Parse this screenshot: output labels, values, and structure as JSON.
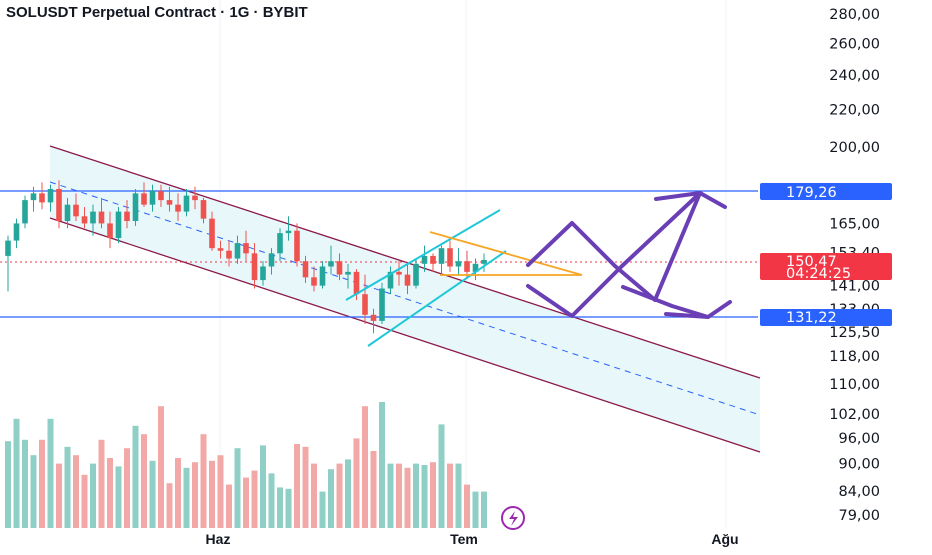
{
  "title": "SOLUSDT Perpetual Contract · 1G · BYBIT",
  "colors": {
    "up": "#26a69a",
    "down": "#ef5350",
    "volume_up": "#8fcfc6",
    "volume_down": "#f2a8a6",
    "channel": "#8b1a4a",
    "channel_fill": "#e8f7fa",
    "wedge": "#1ec8d8",
    "triangle": "#f5a623",
    "projection": "#6a3fb5",
    "level_line": "#2962ff",
    "price_tag": "#f23645",
    "level_tag": "#2962ff",
    "grid": "#f0f3fa"
  },
  "chart_data": {
    "type": "candlestick",
    "title": "SOLUSDT Perpetual Contract · 1G · BYBIT",
    "y_axis": {
      "scale": "log",
      "ticks": [
        "280,00",
        "260,00",
        "240,00",
        "220,00",
        "200,00",
        "165,00",
        "153,40",
        "141,00",
        "133,00",
        "125,50",
        "118,00",
        "110,00",
        "102,00",
        "96,00",
        "90,00",
        "84,00",
        "79,00"
      ],
      "tick_values": [
        280,
        260,
        240,
        220,
        200,
        165,
        153.4,
        141,
        133,
        125.5,
        118,
        110,
        102,
        96,
        90,
        84,
        79
      ]
    },
    "x_axis": {
      "ticks": [
        "Haz",
        "Tem",
        "Ağu"
      ]
    },
    "series": [
      {
        "values": [
          [
            152,
            160,
            139,
            158
          ],
          [
            158,
            167,
            155,
            165
          ],
          [
            165,
            177,
            163,
            175
          ],
          [
            175,
            181,
            170,
            178
          ],
          [
            178,
            183,
            171,
            174
          ],
          [
            174,
            182,
            170,
            180
          ],
          [
            180,
            184,
            163,
            166
          ],
          [
            166,
            176,
            163,
            173
          ],
          [
            173,
            178,
            166,
            168
          ],
          [
            168,
            172,
            163,
            165
          ],
          [
            165,
            173,
            160,
            170
          ],
          [
            170,
            176,
            163,
            165
          ],
          [
            165,
            170,
            155,
            159
          ],
          [
            159,
            172,
            157,
            170
          ],
          [
            170,
            175,
            163,
            166
          ],
          [
            166,
            180,
            164,
            178
          ],
          [
            178,
            183,
            172,
            173
          ],
          [
            173,
            182,
            170,
            179
          ],
          [
            179,
            182,
            172,
            175
          ],
          [
            175,
            181,
            170,
            173
          ],
          [
            173,
            178,
            166,
            170
          ],
          [
            170,
            180,
            168,
            177
          ],
          [
            177,
            181,
            171,
            175
          ],
          [
            175,
            176,
            165,
            167
          ],
          [
            167,
            170,
            154,
            155
          ],
          [
            155,
            158,
            151,
            154
          ],
          [
            154,
            158,
            148,
            151
          ],
          [
            151,
            160,
            149,
            157
          ],
          [
            157,
            162,
            150,
            153
          ],
          [
            153,
            157,
            140,
            143
          ],
          [
            143,
            150,
            141,
            148
          ],
          [
            148,
            155,
            145,
            153
          ],
          [
            153,
            163,
            150,
            161
          ],
          [
            161,
            168,
            158,
            162
          ],
          [
            162,
            165,
            148,
            150
          ],
          [
            150,
            152,
            142,
            144
          ],
          [
            144,
            148,
            139,
            141
          ],
          [
            141,
            150,
            140,
            148
          ],
          [
            148,
            156,
            145,
            150
          ],
          [
            150,
            153,
            143,
            145
          ],
          [
            145,
            149,
            140,
            146
          ],
          [
            146,
            147,
            136,
            138
          ],
          [
            138,
            145,
            128,
            131
          ],
          [
            131,
            133,
            125,
            129
          ],
          [
            129,
            142,
            128,
            140
          ],
          [
            140,
            148,
            138,
            146
          ],
          [
            146,
            150,
            141,
            145
          ],
          [
            145,
            149,
            138,
            141
          ],
          [
            141,
            151,
            140,
            149
          ],
          [
            149,
            156,
            146,
            152
          ],
          [
            152,
            153,
            146,
            149
          ],
          [
            149,
            156,
            145,
            155
          ],
          [
            155,
            158,
            146,
            148
          ],
          [
            148,
            155,
            145,
            150
          ],
          [
            150,
            154,
            144,
            146
          ],
          [
            146,
            151,
            143,
            149
          ],
          [
            149,
            153,
            146,
            150.47
          ]
        ]
      },
      {
        "name": "volume",
        "values": [
          0.62,
          0.78,
          0.63,
          0.52,
          0.63,
          0.78,
          0.46,
          0.58,
          0.52,
          0.38,
          0.46,
          0.63,
          0.5,
          0.44,
          0.57,
          0.73,
          0.67,
          0.48,
          0.87,
          0.32,
          0.5,
          0.43,
          0.47,
          0.67,
          0.48,
          0.52,
          0.31,
          0.57,
          0.36,
          0.41,
          0.59,
          0.39,
          0.29,
          0.28,
          0.6,
          0.58,
          0.46,
          0.26,
          0.42,
          0.46,
          0.49,
          0.64,
          0.87,
          0.55,
          0.9,
          0.46,
          0.46,
          0.43,
          0.46,
          0.45,
          0.47,
          0.74,
          0.46,
          0.46,
          0.31,
          0.26,
          0.26
        ]
      }
    ]
  },
  "price_tags": {
    "resistance": "179,26",
    "current_price": "150,47",
    "countdown": "04:24:25",
    "support": "131,22"
  }
}
